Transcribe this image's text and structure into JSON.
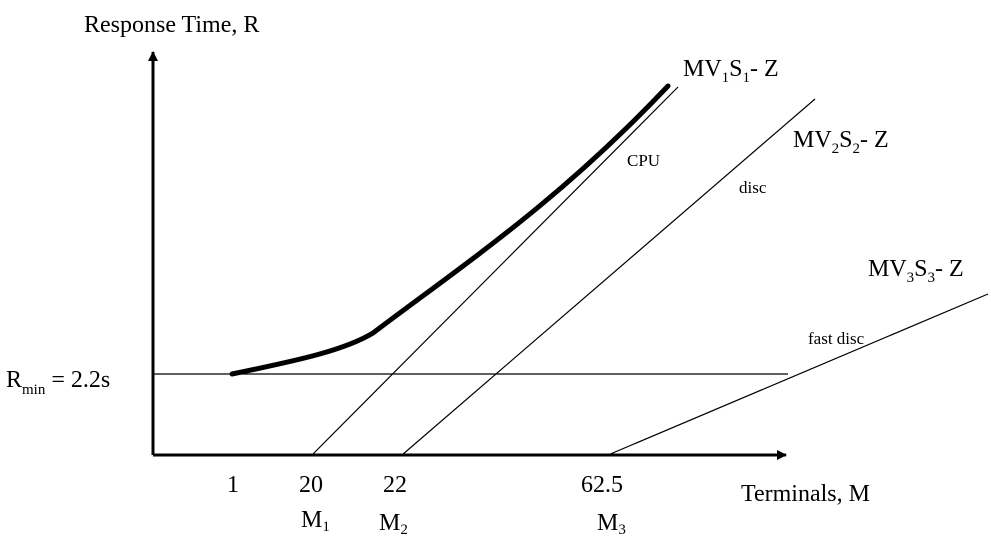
{
  "diagram": {
    "y_axis_label": "Response Time, R",
    "x_axis_label": "Terminals, M",
    "rmin": {
      "base": "R",
      "sub": "min",
      "rest": " = 2.2s"
    },
    "ticks": [
      "1",
      "20",
      "22",
      "62.5"
    ],
    "markers": [
      {
        "base": "M",
        "sub": "1"
      },
      {
        "base": "M",
        "sub": "2"
      },
      {
        "base": "M",
        "sub": "3"
      }
    ],
    "asymptotes": [
      {
        "prefix": "MV",
        "v": "1",
        "s": "S",
        "ss": "1",
        "suffix": "- Z",
        "resource": "CPU"
      },
      {
        "prefix": "MV",
        "v": "2",
        "s": "S",
        "ss": "2",
        "suffix": "- Z",
        "resource": "disc"
      },
      {
        "prefix": "MV",
        "v": "3",
        "s": "S",
        "ss": "3",
        "suffix": "- Z",
        "resource": "fast disc"
      }
    ],
    "colors": {
      "ink": "#000000",
      "background": "#ffffff"
    }
  }
}
